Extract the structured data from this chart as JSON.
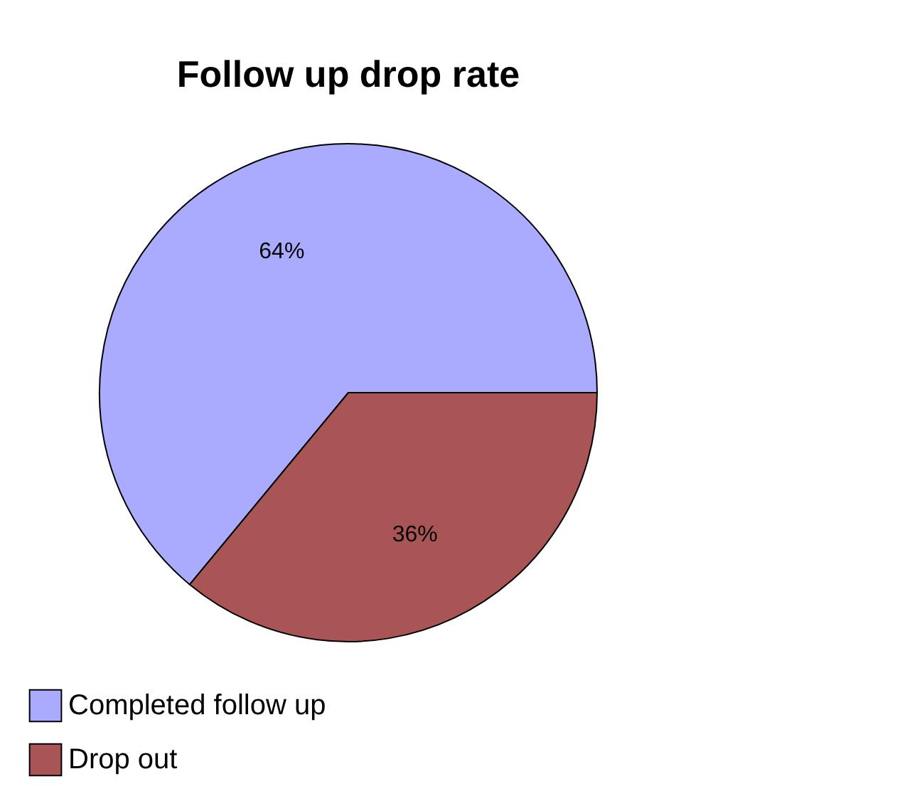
{
  "chart_data": {
    "type": "pie",
    "title": "Follow up drop rate",
    "categories": [
      "Completed follow up",
      "Drop out"
    ],
    "values": [
      64,
      36
    ],
    "colors": [
      "#aaaaff",
      "#aa5555"
    ],
    "value_labels": [
      "64%",
      "36%"
    ],
    "legend": "bottom"
  }
}
